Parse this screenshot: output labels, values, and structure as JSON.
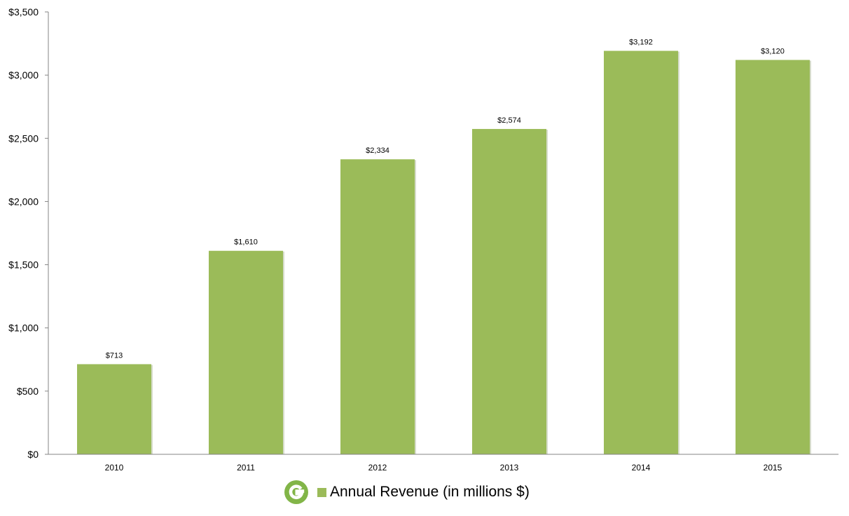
{
  "chart_data": {
    "type": "bar",
    "categories": [
      "2010",
      "2011",
      "2012",
      "2013",
      "2014",
      "2015"
    ],
    "values": [
      713,
      1610,
      2334,
      2574,
      3192,
      3120
    ],
    "data_labels": [
      "$713",
      "$1,610",
      "$2,334",
      "$2,574",
      "$3,192",
      "$3,120"
    ],
    "y_ticks": [
      0,
      500,
      1000,
      1500,
      2000,
      2500,
      3000,
      3500
    ],
    "y_tick_labels": [
      "$0",
      "$500",
      "$1,000",
      "$1,500",
      "$2,000",
      "$2,500",
      "$3,000",
      "$3,500"
    ],
    "ylim": [
      0,
      3500
    ],
    "grid": false,
    "legend_position": "bottom-center",
    "title": "",
    "xlabel": "",
    "ylabel": "",
    "series": [
      {
        "name": "Annual Revenue (in millions $)",
        "color": "#9bbb59"
      }
    ]
  },
  "legend": {
    "label": "Annual Revenue (in millions $)",
    "logo_icon": "groupon-g-logo-icon",
    "logo_color": "#82b548",
    "swatch_color": "#9bbb59"
  },
  "colors": {
    "bar": "#9bbb59",
    "axis": "#868686"
  }
}
